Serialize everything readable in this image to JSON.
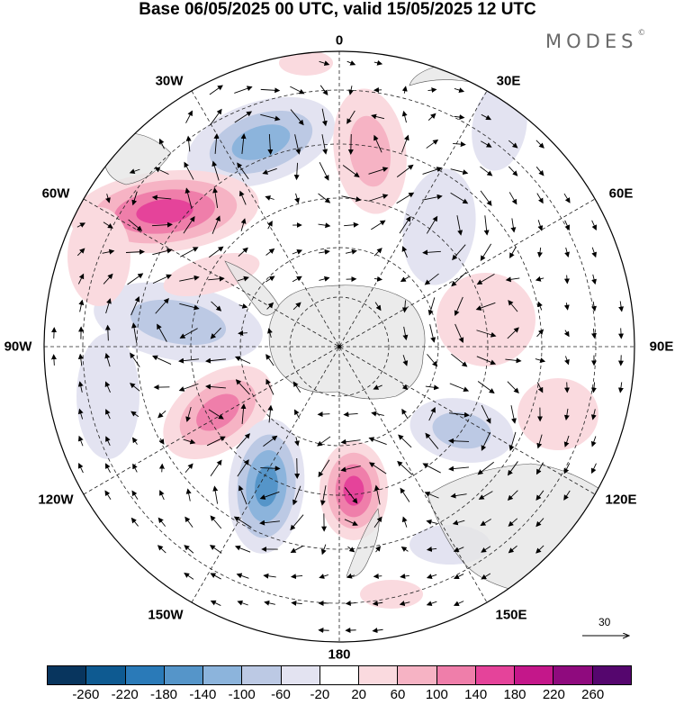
{
  "title": "Base 06/05/2025 00 UTC, valid 15/05/2025 12 UTC",
  "brand": {
    "name": "MODES",
    "mark": "©"
  },
  "longitude_labels": [
    "0",
    "30E",
    "60E",
    "90E",
    "120E",
    "150E",
    "180",
    "150W",
    "120W",
    "90W",
    "60W",
    "30W"
  ],
  "reference_vector": {
    "value": "30"
  },
  "colorbar": {
    "colors": [
      "#08355e",
      "#0e5a91",
      "#2a7ab8",
      "#5595c9",
      "#8cb4dc",
      "#bcc9e4",
      "#e3e3f1",
      "#ffffff",
      "#fadadf",
      "#f6b3c4",
      "#ef7eaa",
      "#e5439a",
      "#c4178a",
      "#8f0a7e",
      "#55066e"
    ],
    "ticks": [
      "-260",
      "-220",
      "-180",
      "-140",
      "-100",
      "-60",
      "-20",
      "20",
      "60",
      "100",
      "140",
      "180",
      "220",
      "260"
    ]
  }
}
